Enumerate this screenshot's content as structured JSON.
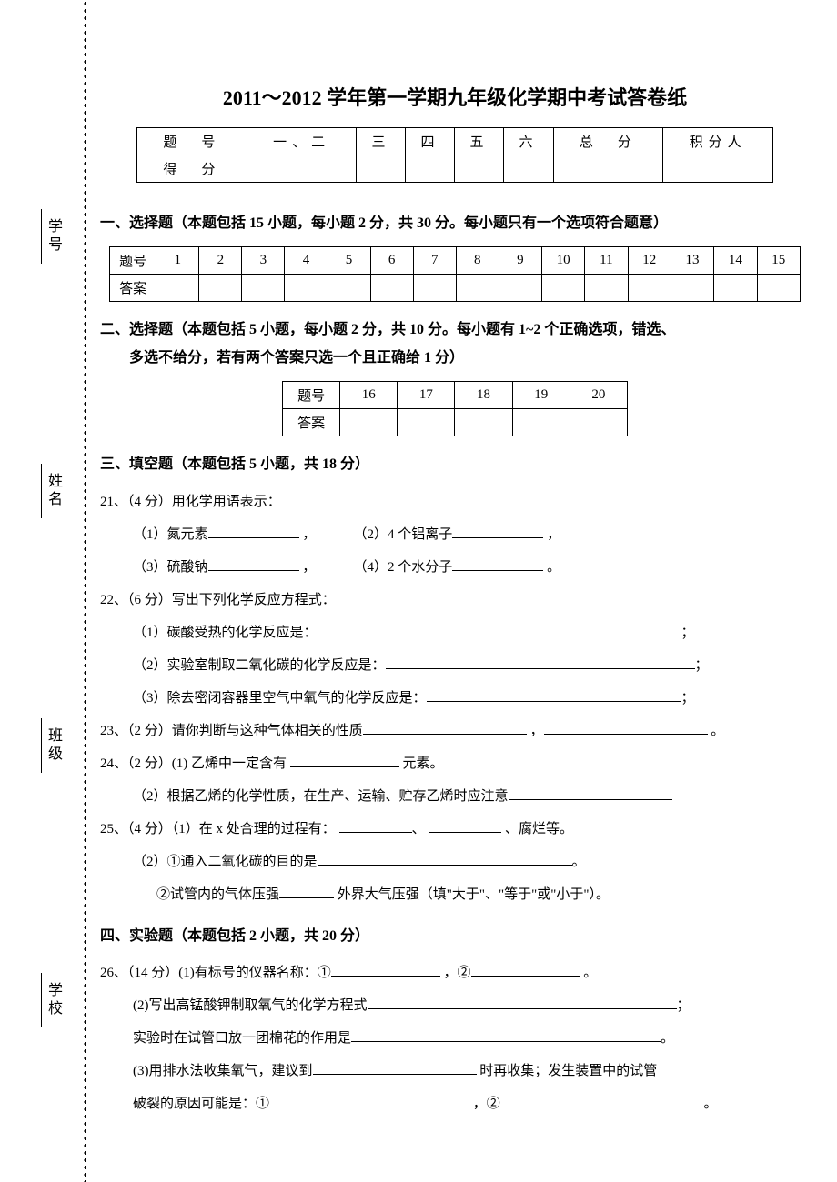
{
  "title": "2011～2012 学年第一学期九年级化学期中考试答卷纸",
  "side_labels": [
    "学校",
    "班级",
    "姓名",
    "学号"
  ],
  "score_table": {
    "row1_label": "题　号",
    "cols": [
      "一、二",
      "三",
      "四",
      "五",
      "六",
      "总　分",
      "积分人"
    ],
    "row2_label": "得　分"
  },
  "section1": {
    "title": "一、选择题（本题包括 15 小题，每小题 2 分，共 30 分。每小题只有一个选项符合题意）",
    "row_label": "题号",
    "ans_label": "答案",
    "nums": [
      "1",
      "2",
      "3",
      "4",
      "5",
      "6",
      "7",
      "8",
      "9",
      "10",
      "11",
      "12",
      "13",
      "14",
      "15"
    ]
  },
  "section2": {
    "title_l1": "二、选择题（本题包括 5 小题，每小题 2 分，共 10 分。每小题有 1~2 个正确选项，错选、",
    "title_l2": "多选不给分，若有两个答案只选一个且正确给 1 分）",
    "row_label": "题号",
    "ans_label": "答案",
    "nums": [
      "16",
      "17",
      "18",
      "19",
      "20"
    ]
  },
  "section3": {
    "title": "三、填空题（本题包括 5 小题，共 18 分）",
    "q21": {
      "head": "21、（4 分）用化学用语表示：",
      "p1a": "（1）氮元素",
      "p1b": "（2）4 个铝离子",
      "p2a": "（3）硫酸钠",
      "p2b": "（4）2 个水分子"
    },
    "q22": {
      "head": "22、（6 分）写出下列化学反应方程式：",
      "p1": "（1）碳酸受热的化学反应是：",
      "p2": "（2）实验室制取二氧化碳的化学反应是：",
      "p3": "（3）除去密闭容器里空气中氧气的化学反应是："
    },
    "q23": "23、（2 分）请你判断与这种气体相关的性质",
    "q24": {
      "head": "24、（2 分）(1) 乙烯中一定含有",
      "tail": "元素。",
      "p2": "（2）根据乙烯的化学性质，在生产、运输、贮存乙烯时应注意"
    },
    "q25": {
      "head": "25、（4 分）（1）在 x 处合理的过程有：",
      "tail": "、腐烂等。",
      "p2": "（2）①通入二氧化碳的目的是",
      "p3_a": "②试管内的气体压强",
      "p3_b": "外界大气压强（填\"大于\"、\"等于\"或\"小于\"）。"
    }
  },
  "section4": {
    "title": "四、实验题（本题包括 2 小题，共 20 分）",
    "q26": {
      "p1": "26、（14 分）(1)有标号的仪器名称：①",
      "p1b": "，②",
      "p2": "(2)写出高锰酸钾制取氧气的化学方程式",
      "p2b": "实验时在试管口放一团棉花的作用是",
      "p3a": "(3)用排水法收集氧气，建议到",
      "p3b": "时再收集；发生装置中的试管",
      "p3c": "破裂的原因可能是：①",
      "p3d": "，②"
    }
  },
  "punct": {
    "comma": "，",
    "period": "。",
    "semicolon": "；",
    "dun": "、"
  }
}
